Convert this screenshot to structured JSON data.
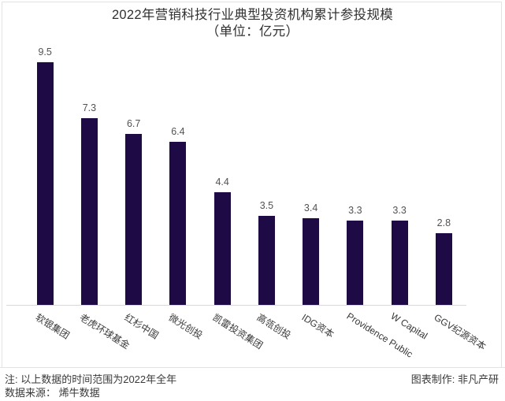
{
  "title": {
    "line1": "2022年营销科技行业典型投资机构累计参投规模",
    "line2": "（单位：亿元）"
  },
  "chart_data": {
    "type": "bar",
    "title": "2022年营销科技行业典型投资机构累计参投规模",
    "subtitle": "（单位：亿元）",
    "categories": [
      "软银集团",
      "老虎环球基金",
      "红杉中国",
      "微光创投",
      "凯雷投资集团",
      "高瓴创投",
      "IDG资本",
      "Providence Public",
      "W Capital",
      "GGV纪源资本"
    ],
    "values": [
      9.5,
      7.3,
      6.7,
      6.4,
      4.4,
      3.5,
      3.4,
      3.3,
      3.3,
      2.8
    ],
    "xlabel": "",
    "ylabel": "",
    "unit": "亿元",
    "ylim": [
      0,
      10
    ],
    "grid": false,
    "legend": "none",
    "value_labels": true,
    "x_label_rotation_deg": 32,
    "bar_color": "#1e0a44",
    "value_label_color": "#525252",
    "axis_line_color": "#d8d8d8"
  },
  "footer": {
    "note_line1": "注: 以上数据的时间范围为2022年全年",
    "note_line2": "数据来源： 烯牛数据",
    "credit": "图表制作: 非凡产研"
  }
}
